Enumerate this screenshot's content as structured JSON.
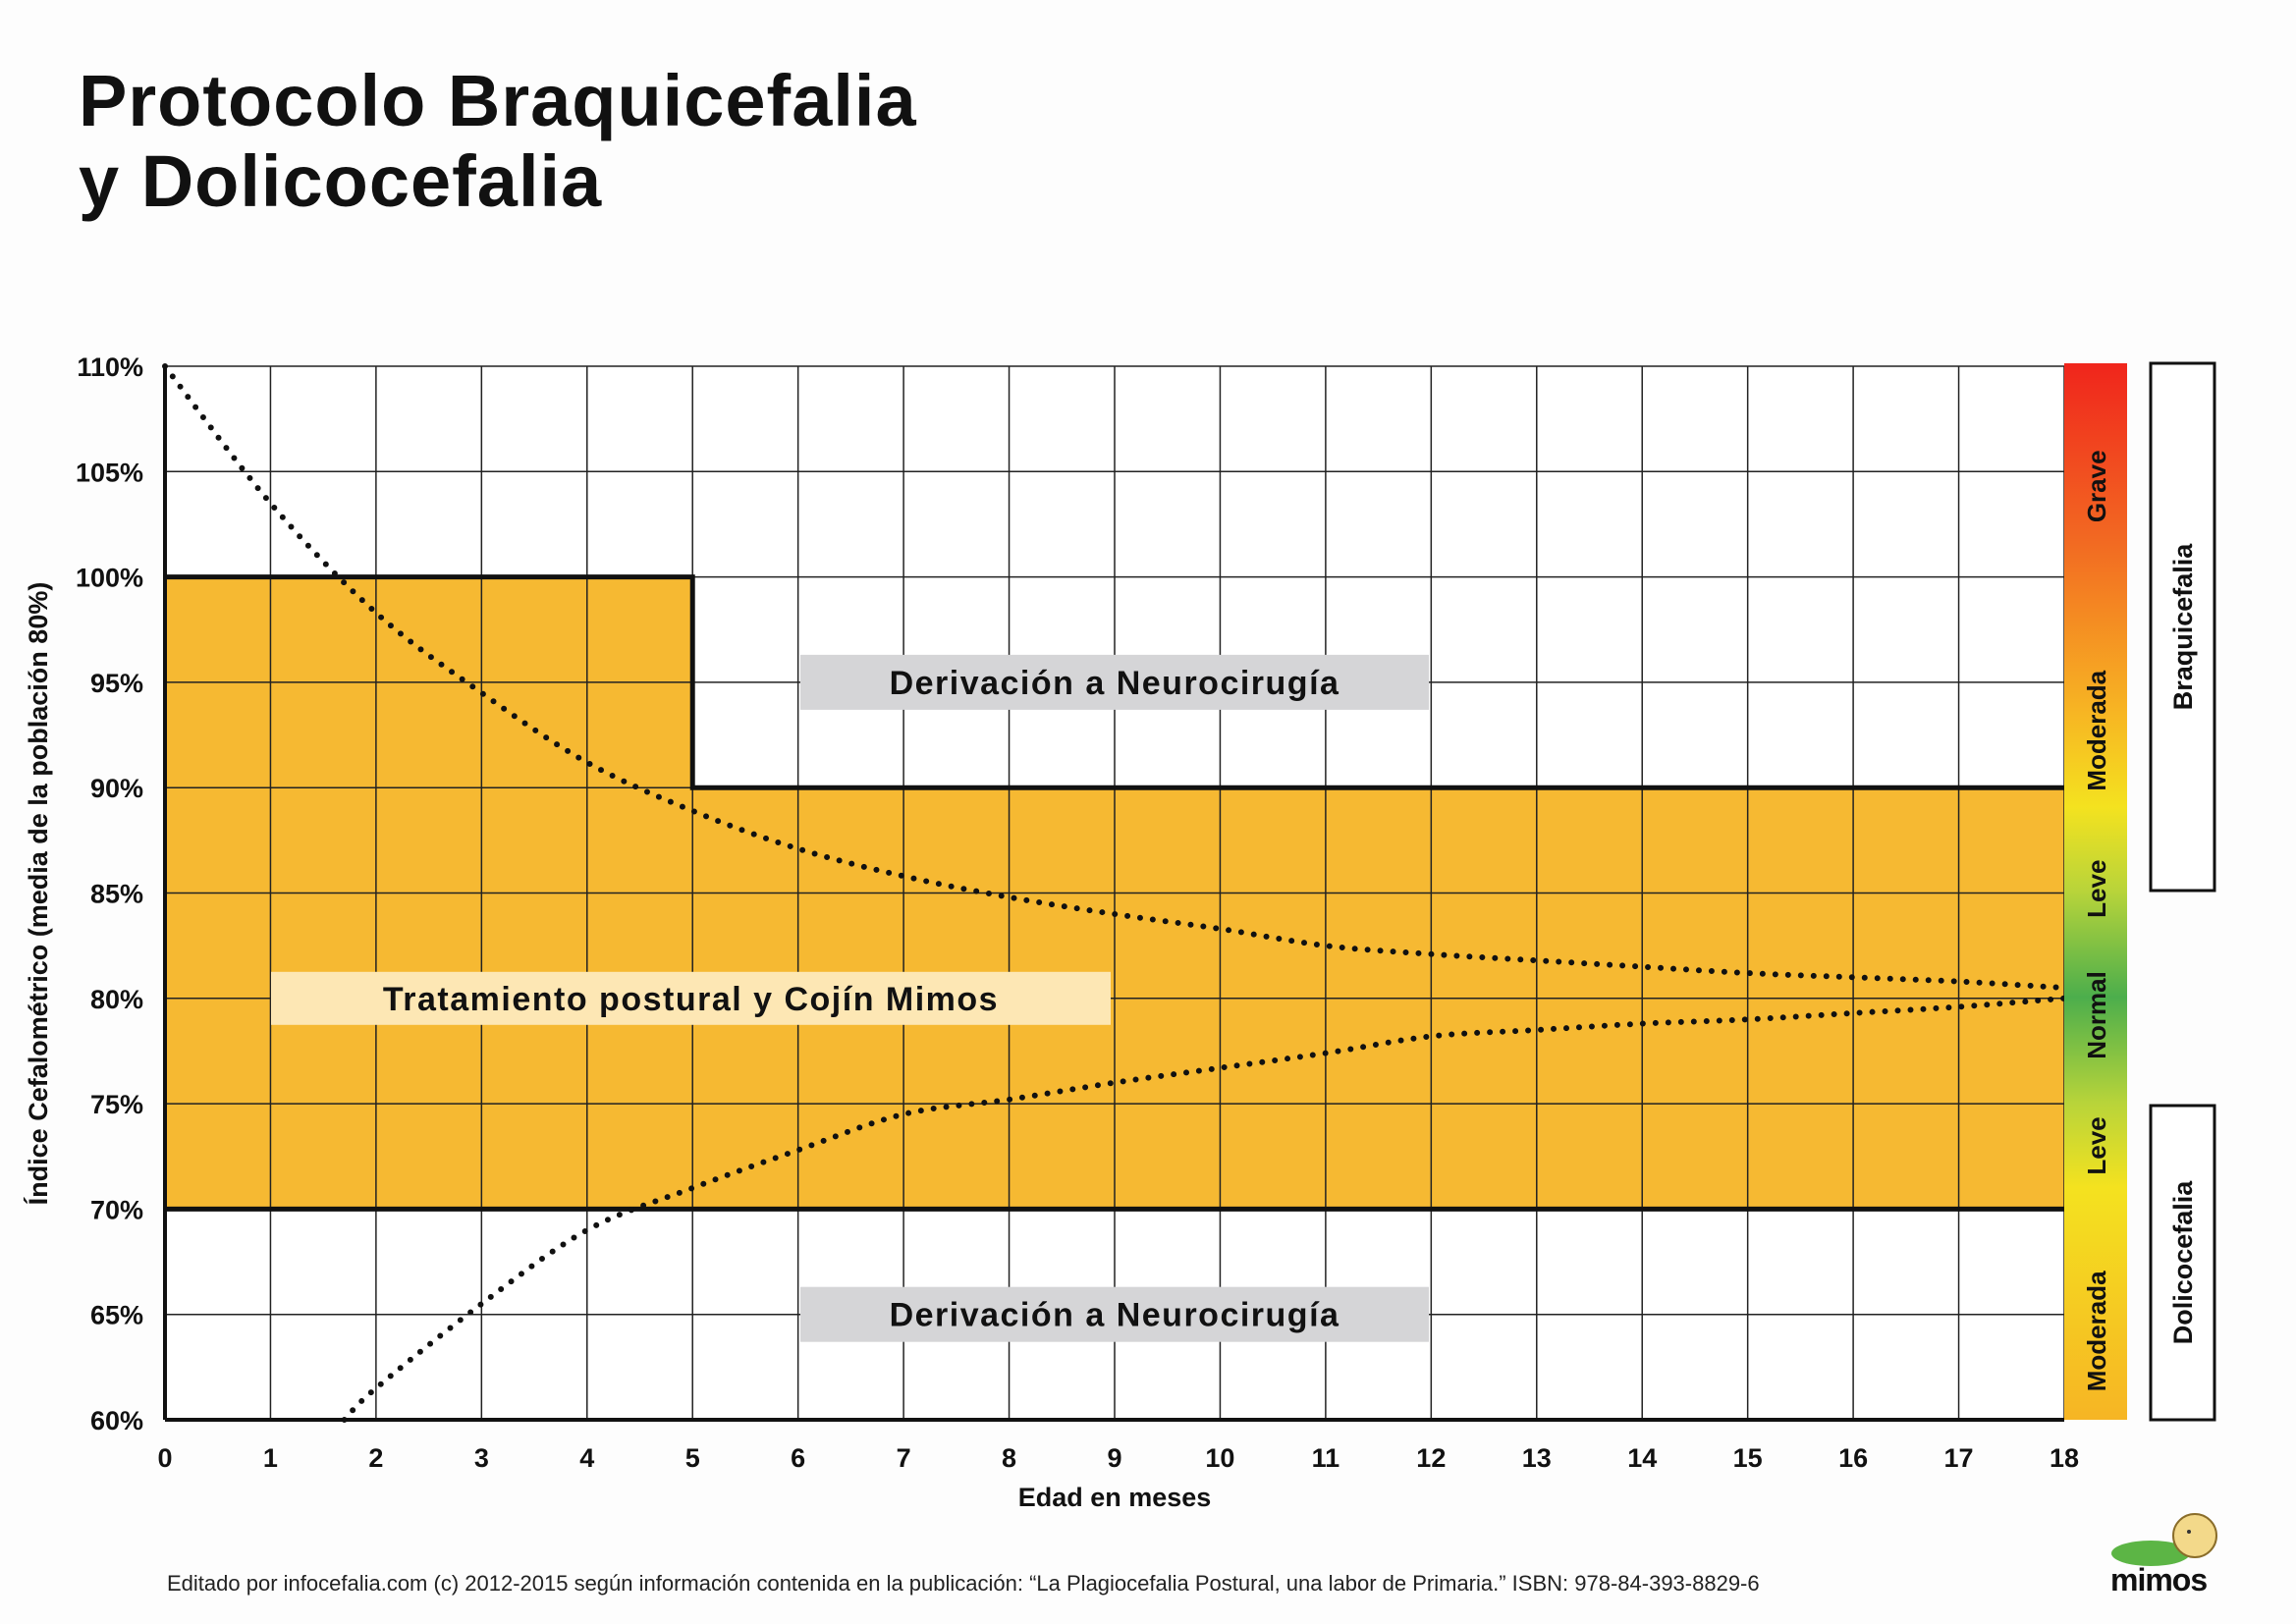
{
  "title": {
    "line1": "Protocolo Braquicefalia",
    "line2": "y Dolicocefalia"
  },
  "footer": "Editado por infocefalia.com (c) 2012-2015 según información contenida en la publicación: “La Plagiocefalia Postural, una labor de Primaria.” ISBN: 978-84-393-8829-6",
  "logo": "mimos",
  "colors": {
    "treatment": "#f6b932",
    "grid": "#222222",
    "label_gray": "#d5d5d7",
    "label_cream": "#fde7b4"
  },
  "chart_data": {
    "type": "line",
    "xlabel": "Edad en meses",
    "ylabel": "Índice Cefalométrico (media de la población 80%)",
    "xlim": [
      0,
      18
    ],
    "ylim": [
      60,
      110
    ],
    "x_ticks": [
      "0",
      "1",
      "2",
      "3",
      "4",
      "5",
      "6",
      "7",
      "8",
      "9",
      "10",
      "11",
      "12",
      "13",
      "14",
      "15",
      "16",
      "17",
      "18"
    ],
    "y_ticks": [
      "110%",
      "105%",
      "100%",
      "95%",
      "90%",
      "85%",
      "80%",
      "75%",
      "70%",
      "65%",
      "60%"
    ],
    "grid": true,
    "regions": [
      {
        "name": "treatment",
        "x": [
          0,
          5
        ],
        "y": [
          70,
          100
        ]
      },
      {
        "name": "treatment",
        "x": [
          5,
          18
        ],
        "y": [
          70,
          90
        ]
      }
    ],
    "annotations": [
      {
        "text": "Derivación a Neurocirugía",
        "x": 9,
        "y": 95
      },
      {
        "text": "Tratamiento postural y Cojín Mimos",
        "x": 5,
        "y": 80
      },
      {
        "text": "Derivación a Neurocirugía",
        "x": 9,
        "y": 65
      }
    ],
    "series": [
      {
        "name": "upper",
        "style": "dotted",
        "x": [
          0,
          1,
          2,
          3,
          4,
          5,
          6,
          7,
          8,
          9,
          10,
          11,
          12,
          13,
          14,
          15,
          16,
          17,
          18
        ],
        "y": [
          110,
          103.5,
          98.3,
          94.5,
          91.2,
          88.9,
          87.1,
          85.8,
          84.8,
          84,
          83.3,
          82.5,
          82.1,
          81.8,
          81.5,
          81.2,
          81,
          80.8,
          80.5
        ]
      },
      {
        "name": "lower",
        "style": "dotted",
        "x": [
          1.7,
          2,
          3,
          4,
          5,
          6,
          7,
          8,
          9,
          10,
          11,
          12,
          13,
          14,
          15,
          16,
          17,
          18
        ],
        "y": [
          60,
          61.5,
          65.5,
          69,
          71,
          72.8,
          74.5,
          75.2,
          76,
          76.7,
          77.4,
          78.2,
          78.5,
          78.8,
          79,
          79.3,
          79.6,
          80
        ]
      }
    ],
    "severity_scale": [
      "Grave",
      "Moderada",
      "Leve",
      "Normal",
      "Leve",
      "Moderada"
    ],
    "categories_right": [
      "Braquicefalia",
      "Dolicocefalia"
    ]
  }
}
